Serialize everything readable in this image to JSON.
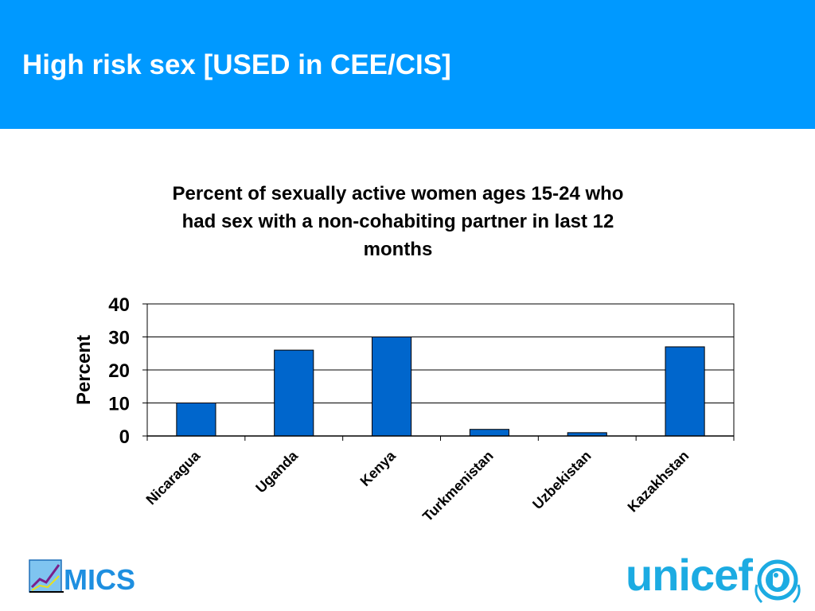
{
  "slide": {
    "title": "High risk sex [USED in CEE/CIS]"
  },
  "colors": {
    "header_bg": "#0099FF",
    "bar_fill": "#0066CC",
    "mics_blue": "#1E8FE0",
    "unicef_blue": "#1CABE2"
  },
  "chart_data": {
    "type": "bar",
    "title_lines": [
      "Percent of sexually active women ages 15-24 who",
      "had sex with a non-cohabiting partner in last 12",
      "months"
    ],
    "categories": [
      "Nicaragua",
      "Uganda",
      "Kenya",
      "Turkmenistan",
      "Uzbekistan",
      "Kazakhstan"
    ],
    "values": [
      10,
      26,
      30,
      2,
      1,
      27
    ],
    "xlabel": "",
    "ylabel": "Percent",
    "ylim": [
      0,
      40
    ],
    "yticks": [
      0,
      10,
      20,
      30,
      40
    ],
    "grid": true,
    "legend": "none"
  },
  "logos": {
    "mics_text": "MICS",
    "unicef_text": "unicef"
  }
}
